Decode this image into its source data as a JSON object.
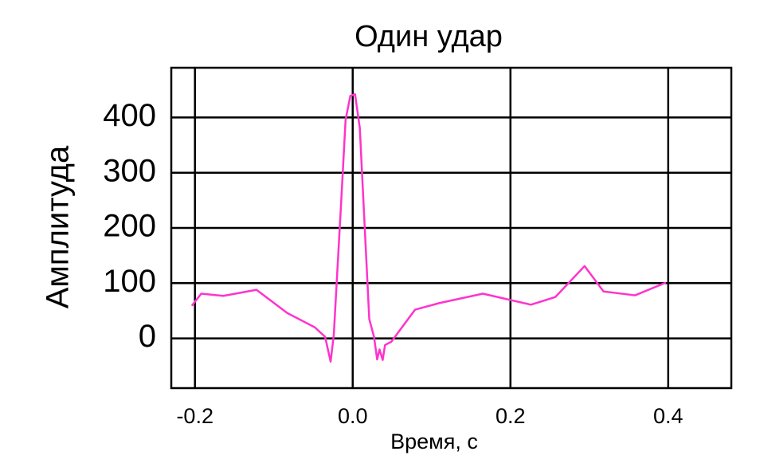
{
  "chart_data": {
    "type": "line",
    "title": "Один удар",
    "xlabel": "Время, с",
    "ylabel": "Амплитуда",
    "x": [
      -0.204,
      -0.192,
      -0.164,
      -0.122,
      -0.083,
      -0.048,
      -0.035,
      -0.028,
      -0.024,
      -0.015,
      -0.009,
      -0.003,
      0.003,
      0.009,
      0.015,
      0.021,
      0.027,
      0.031,
      0.034,
      0.038,
      0.041,
      0.049,
      0.079,
      0.11,
      0.165,
      0.226,
      0.257,
      0.294,
      0.318,
      0.358,
      0.397
    ],
    "series": [
      {
        "name": "Один удар",
        "color": "#ff33cc",
        "values": [
          59,
          81,
          77,
          88,
          46,
          20,
          3,
          -42,
          6,
          237,
          396,
          439,
          442,
          381,
          208,
          35,
          3,
          -38,
          -20,
          -39,
          -12,
          -6,
          52,
          64,
          81,
          61,
          75,
          131,
          85,
          78,
          101
        ]
      }
    ],
    "xlim": [
      -0.23,
      0.48
    ],
    "ylim": [
      -90,
      490
    ],
    "xticks": [
      -0.2,
      {
        "value": 0,
        "label": "0.0"
      },
      0.2,
      0.4
    ],
    "yticks": [
      0,
      100,
      200,
      300,
      400
    ],
    "grid": true
  }
}
